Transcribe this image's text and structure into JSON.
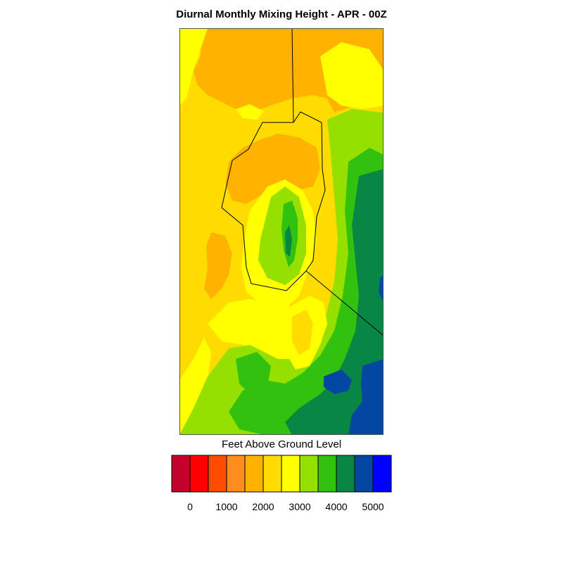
{
  "title": "Diurnal Monthly Mixing Height - APR - 00Z",
  "legend": {
    "title": "Feet Above Ground Level",
    "bins": [
      {
        "color": "#c4002b"
      },
      {
        "color": "#ff0000"
      },
      {
        "color": "#ff4b00"
      },
      {
        "color": "#ff8c1e"
      },
      {
        "color": "#ffb300"
      },
      {
        "color": "#ffdc00"
      },
      {
        "color": "#ffff00"
      },
      {
        "color": "#96e000"
      },
      {
        "color": "#32c10f"
      },
      {
        "color": "#078743"
      },
      {
        "color": "#0646a3"
      },
      {
        "color": "#0000ff"
      }
    ],
    "tick_labels": [
      "0",
      "1000",
      "2000",
      "3000",
      "4000",
      "5000"
    ]
  },
  "map": {
    "field": "Diurnal Monthly Mixing Height",
    "units": "Feet Above Ground Level",
    "month": "APR",
    "hour": "00Z"
  }
}
